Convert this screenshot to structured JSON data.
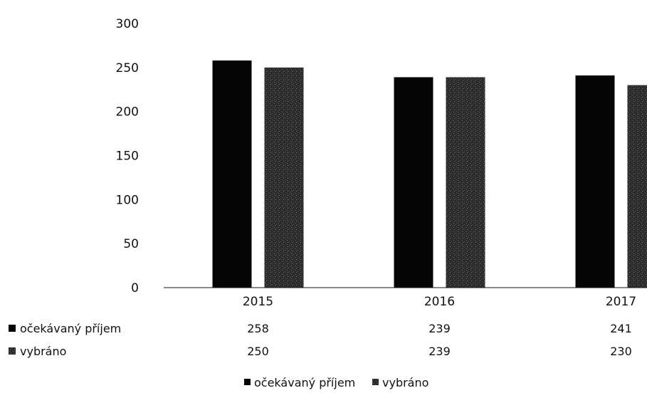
{
  "chart_data": {
    "type": "bar",
    "categories": [
      "2015",
      "2016",
      "2017"
    ],
    "series": [
      {
        "name": "očekávaný příjem",
        "values": [
          258,
          239,
          241
        ],
        "color": "#050505"
      },
      {
        "name": "vybráno",
        "values": [
          250,
          239,
          230
        ],
        "color": "#2e2e2e"
      }
    ],
    "ylim": [
      0,
      300
    ],
    "yticks": [
      0,
      50,
      100,
      150,
      200,
      250,
      300
    ],
    "grid": false,
    "legend": "bottom",
    "data_table": {
      "rows": [
        {
          "label": "očekávaný příjem",
          "values": [
            "258",
            "239",
            "241"
          ]
        },
        {
          "label": "vybráno",
          "values": [
            "250",
            "239",
            "230"
          ]
        }
      ]
    },
    "legend_entries": [
      "očekávaný příjem",
      "vybráno"
    ]
  }
}
